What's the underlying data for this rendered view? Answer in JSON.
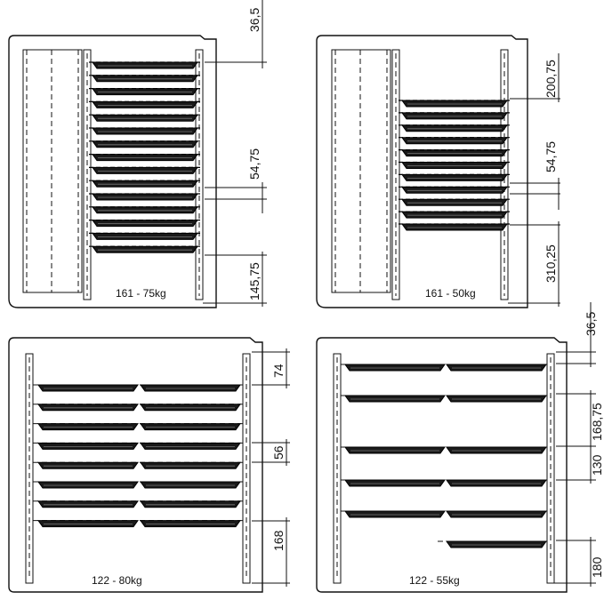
{
  "panels": [
    {
      "caption": "161 - 75kg",
      "dims": [
        {
          "label": "36,5"
        },
        {
          "label": "54,75"
        },
        {
          "label": "145,75"
        }
      ]
    },
    {
      "caption": "161 - 50kg",
      "dims": [
        {
          "label": "200,75"
        },
        {
          "label": "54,75"
        },
        {
          "label": "310,25"
        }
      ]
    },
    {
      "caption": "122 - 80kg",
      "dims": [
        {
          "label": "74"
        },
        {
          "label": "56"
        },
        {
          "label": "168"
        }
      ]
    },
    {
      "caption": "122 - 55kg",
      "dims": [
        {
          "label": "36,5"
        },
        {
          "label": "168,75"
        },
        {
          "label": "130"
        },
        {
          "label": "180"
        }
      ]
    }
  ]
}
